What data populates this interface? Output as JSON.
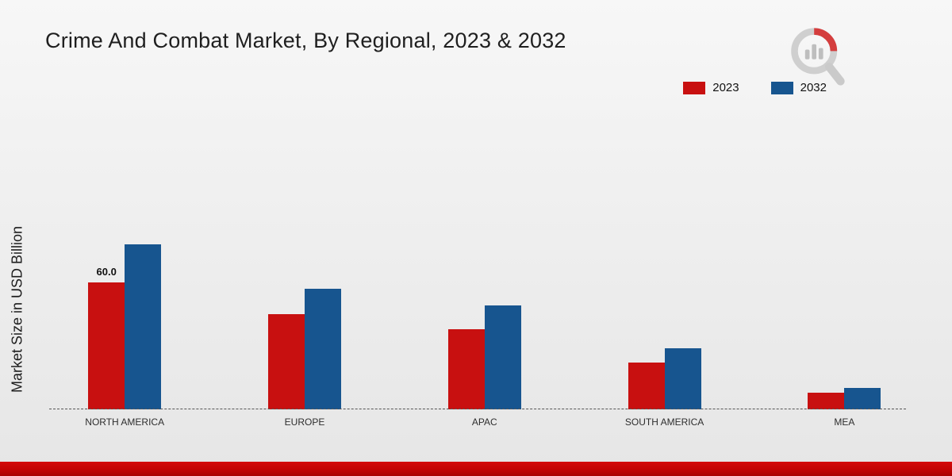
{
  "title": "Crime And Combat Market, By Regional, 2023 & 2032",
  "ylabel": "Market Size in USD Billion",
  "legend": {
    "items": [
      {
        "label": "2023",
        "color": "#c81010"
      },
      {
        "label": "2032",
        "color": "#17558f"
      }
    ]
  },
  "chart_data": {
    "type": "bar",
    "title": "Crime And Combat Market, By Regional, 2023 & 2032",
    "xlabel": "",
    "ylabel": "Market Size in USD Billion",
    "categories": [
      "North America",
      "Europe",
      "APAC",
      "South America",
      "MEA"
    ],
    "category_labels": [
      "NORTH AMERICA",
      "EUROPE",
      "APAC",
      "SOUTH AMERICA",
      "MEA"
    ],
    "series": [
      {
        "name": "2023",
        "color": "#c81010",
        "values": [
          60.0,
          45.0,
          38.0,
          22.0,
          8.0
        ]
      },
      {
        "name": "2032",
        "color": "#17558f",
        "values": [
          78.0,
          57.0,
          49.0,
          29.0,
          10.0
        ]
      }
    ],
    "data_labels": [
      {
        "category": "North America",
        "series": "2023",
        "text": "60.0"
      }
    ],
    "ylim": [
      0,
      90
    ],
    "grid": false,
    "legend_position": "top-right",
    "baseline_style": "dashed"
  },
  "brand": {
    "footer_color": "#c30404",
    "logo": "magnifier-bar-chart"
  }
}
